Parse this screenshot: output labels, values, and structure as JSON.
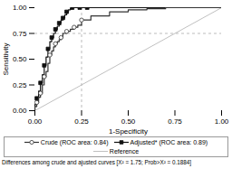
{
  "chart_data": {
    "type": "line",
    "xlabel": "1-Specificity",
    "ylabel": "Sensitivity",
    "xlim": [
      0.0,
      1.0
    ],
    "ylim": [
      0.0,
      1.0
    ],
    "xticks": [
      {
        "value": 0.0,
        "label": "0.00"
      },
      {
        "value": 0.25,
        "label": "0.25"
      },
      {
        "value": 0.5,
        "label": "0.50"
      },
      {
        "value": 0.75,
        "label": "0.75"
      },
      {
        "value": 1.0,
        "label": "1.00"
      }
    ],
    "yticks": [
      {
        "value": 0.0,
        "label": "0.00"
      },
      {
        "value": 0.25,
        "label": "0.25"
      },
      {
        "value": 0.5,
        "label": "0.50"
      },
      {
        "value": 0.75,
        "label": "0.75"
      },
      {
        "value": 1.0,
        "label": "1.00"
      }
    ],
    "grid": false,
    "legend": "bottom",
    "footnote": "Differences among crude and ajusted curves [X² = 1.75; Prob>X² = 0.1884]",
    "reference_lines": [
      {
        "axis": "y",
        "value": 0.75,
        "color": "#aaaaaa",
        "line_style": "dashed"
      },
      {
        "axis": "x",
        "value": 0.25,
        "color": "#aaaaaa",
        "line_style": "dashed"
      }
    ],
    "series": [
      {
        "name": "Crude (ROC area: 0.84)",
        "color": "#333333",
        "marker": "open circle",
        "line_style": "solid",
        "x": [
          0.0,
          0.0,
          0.01,
          0.01,
          0.02,
          0.02,
          0.03,
          0.03,
          0.04,
          0.04,
          0.05,
          0.05,
          0.06,
          0.06,
          0.07,
          0.07,
          0.08,
          0.08,
          0.09,
          0.09,
          0.1,
          0.1,
          0.11,
          0.11,
          0.12,
          0.12,
          0.13,
          0.13,
          0.14,
          0.14,
          0.15,
          0.15,
          0.17,
          0.17,
          0.19,
          0.19,
          0.21,
          0.21,
          0.23,
          0.23,
          0.25,
          0.25,
          0.3,
          0.3,
          0.4,
          0.4,
          0.5,
          0.5,
          0.6,
          0.6,
          0.7,
          0.7,
          0.8,
          0.8,
          1.0
        ],
        "values": [
          0.0,
          0.04,
          0.04,
          0.08,
          0.08,
          0.13,
          0.13,
          0.17,
          0.17,
          0.25,
          0.25,
          0.33,
          0.33,
          0.38,
          0.38,
          0.46,
          0.46,
          0.54,
          0.54,
          0.58,
          0.58,
          0.62,
          0.62,
          0.65,
          0.65,
          0.67,
          0.67,
          0.69,
          0.69,
          0.71,
          0.71,
          0.75,
          0.75,
          0.77,
          0.77,
          0.79,
          0.79,
          0.81,
          0.81,
          0.83,
          0.83,
          0.88,
          0.88,
          0.92,
          0.92,
          0.96,
          0.96,
          0.98,
          0.98,
          0.99,
          0.99,
          1.0,
          1.0,
          1.0,
          1.0
        ],
        "marker_x": [
          0.01,
          0.03,
          0.05,
          0.08,
          0.11,
          0.14,
          0.17,
          0.21,
          0.25
        ],
        "marker_values": [
          0.08,
          0.17,
          0.33,
          0.54,
          0.65,
          0.71,
          0.77,
          0.81,
          0.88
        ]
      },
      {
        "name": "Adjusted* (ROC area: 0.89)",
        "color": "#111111",
        "marker": "filled square",
        "line_style": "solid",
        "x": [
          0.0,
          0.0,
          0.01,
          0.01,
          0.02,
          0.02,
          0.03,
          0.03,
          0.04,
          0.04,
          0.05,
          0.05,
          0.06,
          0.06,
          0.07,
          0.07,
          0.08,
          0.08,
          0.09,
          0.09,
          0.1,
          0.1,
          0.11,
          0.11,
          0.12,
          0.12,
          0.13,
          0.13,
          0.14,
          0.14,
          0.15,
          0.15,
          0.16,
          0.16,
          0.17,
          0.17,
          0.18,
          0.18,
          0.19,
          0.19,
          0.2,
          0.2,
          0.22,
          0.22,
          0.24,
          0.24,
          0.26,
          0.26,
          0.28,
          0.28,
          0.3,
          0.3,
          1.0
        ],
        "values": [
          0.0,
          0.06,
          0.06,
          0.12,
          0.12,
          0.19,
          0.19,
          0.27,
          0.27,
          0.35,
          0.35,
          0.44,
          0.44,
          0.52,
          0.52,
          0.6,
          0.6,
          0.67,
          0.67,
          0.71,
          0.71,
          0.75,
          0.75,
          0.79,
          0.79,
          0.82,
          0.82,
          0.85,
          0.85,
          0.88,
          0.88,
          0.9,
          0.9,
          0.93,
          0.93,
          0.96,
          0.96,
          0.98,
          0.98,
          0.99,
          0.99,
          1.0,
          1.0,
          1.0,
          1.0,
          1.0,
          1.0,
          1.0,
          1.0,
          1.0,
          1.0,
          1.0,
          1.0
        ],
        "marker_x": [
          0.01,
          0.03,
          0.05,
          0.07,
          0.09,
          0.11,
          0.13,
          0.15,
          0.17,
          0.2,
          0.24,
          0.28
        ],
        "marker_values": [
          0.12,
          0.27,
          0.44,
          0.6,
          0.71,
          0.79,
          0.85,
          0.9,
          0.96,
          1.0,
          1.0,
          1.0
        ]
      },
      {
        "name": "Reference",
        "color": "#c0c0c0",
        "line_style": "solid",
        "x": [
          0,
          1
        ],
        "values": [
          0,
          1
        ]
      }
    ]
  }
}
